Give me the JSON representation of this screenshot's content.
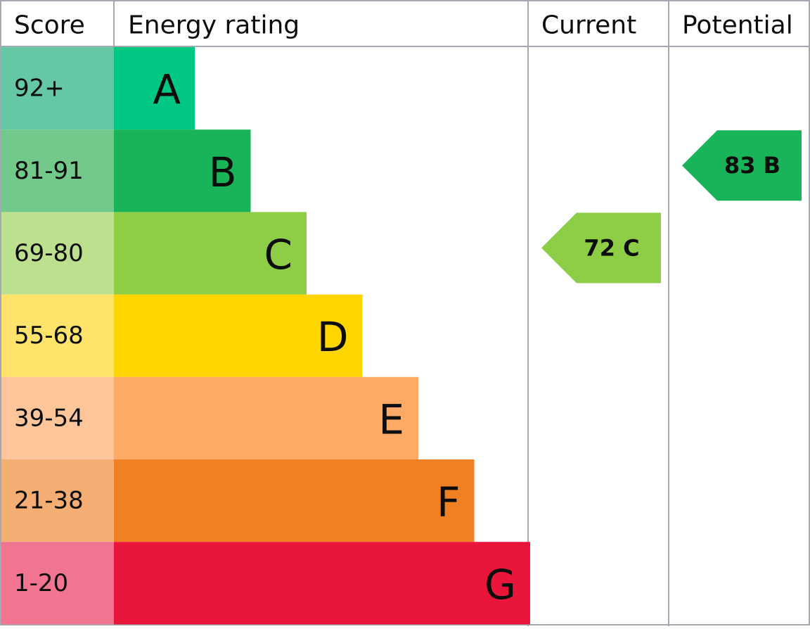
{
  "header": {
    "score": "Score",
    "rating": "Energy rating",
    "current": "Current",
    "potential": "Potential"
  },
  "rows": [
    {
      "score": "92+",
      "rating": "A",
      "color": "#00c781",
      "score_color": "#64c8a4"
    },
    {
      "score": "81-91",
      "rating": "B",
      "color": "#19b459",
      "score_color": "#72c98b"
    },
    {
      "score": "69-80",
      "rating": "C",
      "color": "#8dce46",
      "score_color": "#bde08f"
    },
    {
      "score": "55-68",
      "rating": "D",
      "color": "#ffd500",
      "score_color": "#ffe36b"
    },
    {
      "score": "39-54",
      "rating": "E",
      "color": "#fcaa65",
      "score_color": "#fdc59a"
    },
    {
      "score": "21-38",
      "rating": "F",
      "color": "#ef8023",
      "score_color": "#f4ad72"
    },
    {
      "score": "1-20",
      "rating": "G",
      "color": "#e9153b",
      "score_color": "#f17590"
    }
  ],
  "current": {
    "score": 72,
    "rating": "C"
  },
  "potential": {
    "score": 83,
    "rating": "B"
  }
}
